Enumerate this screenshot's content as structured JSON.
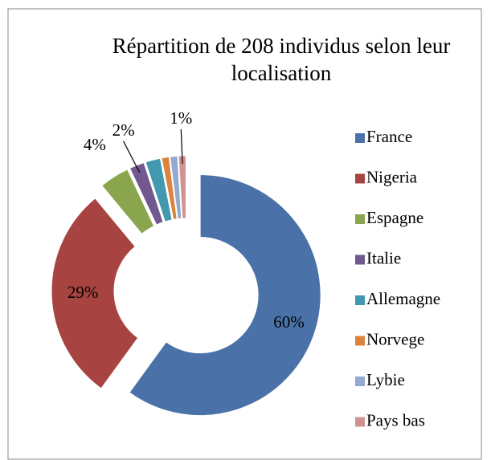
{
  "chart_data": {
    "type": "donut",
    "title": "Répartition de 208 individus selon leur localisation",
    "categories": [
      "France",
      "Nigeria",
      "Espagne",
      "Italie",
      "Allemagne",
      "Norvege",
      "Lybie",
      "Pays bas"
    ],
    "values": [
      60,
      29,
      4,
      2,
      2,
      1,
      1,
      1
    ],
    "value_labels": [
      "60%",
      "29%",
      "4%",
      "2%",
      null,
      null,
      null,
      "1%"
    ],
    "colors": [
      "#4a72a8",
      "#a74340",
      "#89a54e",
      "#71588f",
      "#4198af",
      "#db843d",
      "#93a9cf",
      "#d19392"
    ],
    "legend": "right"
  }
}
